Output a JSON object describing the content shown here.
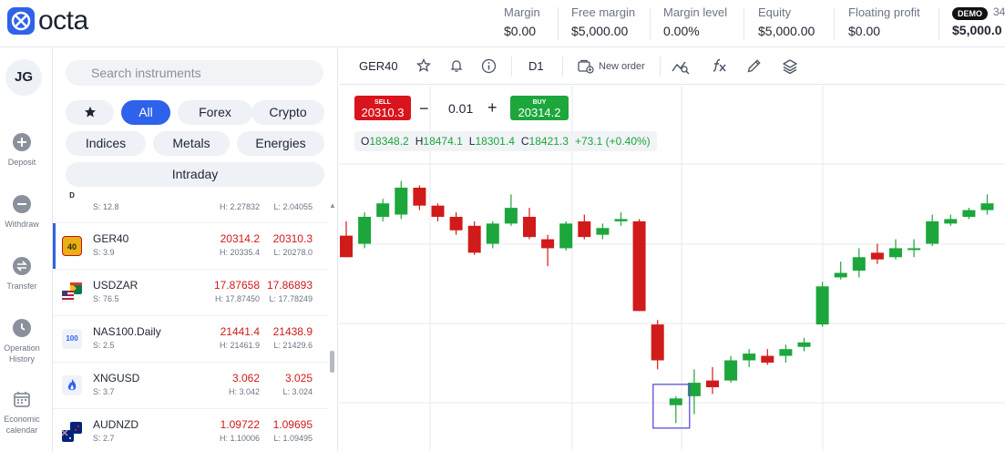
{
  "app": {
    "brand": "octa",
    "colors": {
      "accent": "#2f62ea",
      "sell": "#d9141c",
      "buy": "#1ca63b",
      "up": "#1ca63b",
      "down": "#d11a1a"
    }
  },
  "account": {
    "metrics": [
      {
        "label": "Margin",
        "value": "$0.00"
      },
      {
        "label": "Free margin",
        "value": "$5,000.00"
      },
      {
        "label": "Margin level",
        "value": "0.00%"
      },
      {
        "label": "Equity",
        "value": "$5,000.00"
      },
      {
        "label": "Floating profit",
        "value": "$0.00"
      }
    ],
    "badge": "DEMO",
    "account_number": "34",
    "balance": "$5,000.0"
  },
  "nav": {
    "avatar": "JG",
    "items": [
      {
        "label": "Deposit",
        "icon": "plus-circle-icon"
      },
      {
        "label": "Withdraw",
        "icon": "minus-circle-icon"
      },
      {
        "label": "Transfer",
        "icon": "transfer-icon"
      },
      {
        "label": "Operation History",
        "icon": "clock-icon"
      },
      {
        "label": "Economic calendar",
        "icon": "calendar-icon"
      }
    ]
  },
  "search": {
    "placeholder": "Search instruments",
    "value": ""
  },
  "filters": [
    "All",
    "Forex",
    "Crypto",
    "Indices",
    "Metals",
    "Energies",
    "Intraday"
  ],
  "active_filter": "All",
  "instruments": [
    {
      "symbol": "",
      "spread": "S: 12.8",
      "bid": "",
      "ask": "",
      "high": "H: 2.27832",
      "low": "L: 2.04055",
      "flag": "D"
    },
    {
      "symbol": "GER40",
      "spread": "S: 3.9",
      "bid": "20314.2",
      "ask": "20310.3",
      "high": "H: 20335.4",
      "low": "L: 20278.0",
      "flag": "40"
    },
    {
      "symbol": "USDZAR",
      "spread": "S: 76.5",
      "bid": "17.87658",
      "ask": "17.86893",
      "high": "H: 17.87450",
      "low": "L: 17.78249",
      "flag": ""
    },
    {
      "symbol": "NAS100.Daily",
      "spread": "S: 2.5",
      "bid": "21441.4",
      "ask": "21438.9",
      "high": "H: 21461.9",
      "low": "L: 21429.6",
      "flag": "100"
    },
    {
      "symbol": "XNGUSD",
      "spread": "S: 3.7",
      "bid": "3.062",
      "ask": "3.025",
      "high": "H: 3.042",
      "low": "L: 3.024",
      "flag": ""
    },
    {
      "symbol": "AUDNZD",
      "spread": "S: 2.7",
      "bid": "1.09722",
      "ask": "1.09695",
      "high": "H: 1.10006",
      "low": "L: 1.09495",
      "flag": ""
    }
  ],
  "chart_toolbar": {
    "symbol": "GER40",
    "timeframe": "D1",
    "new_order": "New order",
    "icons": [
      "star-icon",
      "bell-icon",
      "info-icon",
      "new-order-icon",
      "indicators-icon",
      "fx-icon",
      "pencil-icon",
      "layers-icon"
    ]
  },
  "trade": {
    "sell_label": "SELL",
    "sell_price": "20310.3",
    "buy_label": "BUY",
    "buy_price": "20314.2",
    "minus": "−",
    "plus": "+",
    "lot": "0.01"
  },
  "ohlc": {
    "o_label": "O",
    "o": "18348.2",
    "h_label": "H",
    "h": "18474.1",
    "l_label": "L",
    "l": "18301.4",
    "c_label": "C",
    "c": "18421.3",
    "change": "+73.1 (+0.40%)"
  },
  "chart_data": {
    "type": "candlestick",
    "grid": true,
    "candles": [
      {
        "o": 18348,
        "h": 18380,
        "l": 18300,
        "c": 18300
      },
      {
        "o": 18330,
        "h": 18400,
        "l": 18320,
        "c": 18390
      },
      {
        "o": 18390,
        "h": 18430,
        "l": 18380,
        "c": 18420
      },
      {
        "o": 18395,
        "h": 18470,
        "l": 18385,
        "c": 18455
      },
      {
        "o": 18455,
        "h": 18460,
        "l": 18405,
        "c": 18415
      },
      {
        "o": 18415,
        "h": 18420,
        "l": 18380,
        "c": 18390
      },
      {
        "o": 18390,
        "h": 18400,
        "l": 18350,
        "c": 18360
      },
      {
        "o": 18370,
        "h": 18380,
        "l": 18305,
        "c": 18310
      },
      {
        "o": 18330,
        "h": 18380,
        "l": 18320,
        "c": 18375
      },
      {
        "o": 18375,
        "h": 18440,
        "l": 18370,
        "c": 18410
      },
      {
        "o": 18390,
        "h": 18410,
        "l": 18340,
        "c": 18345
      },
      {
        "o": 18340,
        "h": 18350,
        "l": 18280,
        "c": 18320
      },
      {
        "o": 18320,
        "h": 18380,
        "l": 18315,
        "c": 18375
      },
      {
        "o": 18380,
        "h": 18395,
        "l": 18340,
        "c": 18345
      },
      {
        "o": 18350,
        "h": 18375,
        "l": 18340,
        "c": 18365
      },
      {
        "o": 18380,
        "h": 18400,
        "l": 18370,
        "c": 18385
      },
      {
        "o": 18380,
        "h": 18385,
        "l": 18180,
        "c": 18180
      },
      {
        "o": 18150,
        "h": 18160,
        "l": 18050,
        "c": 18070
      },
      {
        "o": 17970,
        "h": 17990,
        "l": 17930,
        "c": 17985
      },
      {
        "o": 17990,
        "h": 18050,
        "l": 17950,
        "c": 18020
      },
      {
        "o": 18025,
        "h": 18055,
        "l": 17995,
        "c": 18010
      },
      {
        "o": 18025,
        "h": 18080,
        "l": 18020,
        "c": 18070
      },
      {
        "o": 18070,
        "h": 18095,
        "l": 18055,
        "c": 18085
      },
      {
        "o": 18080,
        "h": 18095,
        "l": 18060,
        "c": 18065
      },
      {
        "o": 18080,
        "h": 18105,
        "l": 18065,
        "c": 18095
      },
      {
        "o": 18100,
        "h": 18120,
        "l": 18090,
        "c": 18110
      },
      {
        "o": 18150,
        "h": 18245,
        "l": 18145,
        "c": 18235
      },
      {
        "o": 18255,
        "h": 18290,
        "l": 18250,
        "c": 18265
      },
      {
        "o": 18270,
        "h": 18320,
        "l": 18255,
        "c": 18300
      },
      {
        "o": 18310,
        "h": 18330,
        "l": 18285,
        "c": 18295
      },
      {
        "o": 18300,
        "h": 18340,
        "l": 18295,
        "c": 18320
      },
      {
        "o": 18320,
        "h": 18340,
        "l": 18300,
        "c": 18320
      },
      {
        "o": 18330,
        "h": 18395,
        "l": 18325,
        "c": 18380
      },
      {
        "o": 18375,
        "h": 18395,
        "l": 18370,
        "c": 18385
      },
      {
        "o": 18390,
        "h": 18410,
        "l": 18385,
        "c": 18405
      },
      {
        "o": 18405,
        "h": 18440,
        "l": 18395,
        "c": 18420
      }
    ]
  }
}
